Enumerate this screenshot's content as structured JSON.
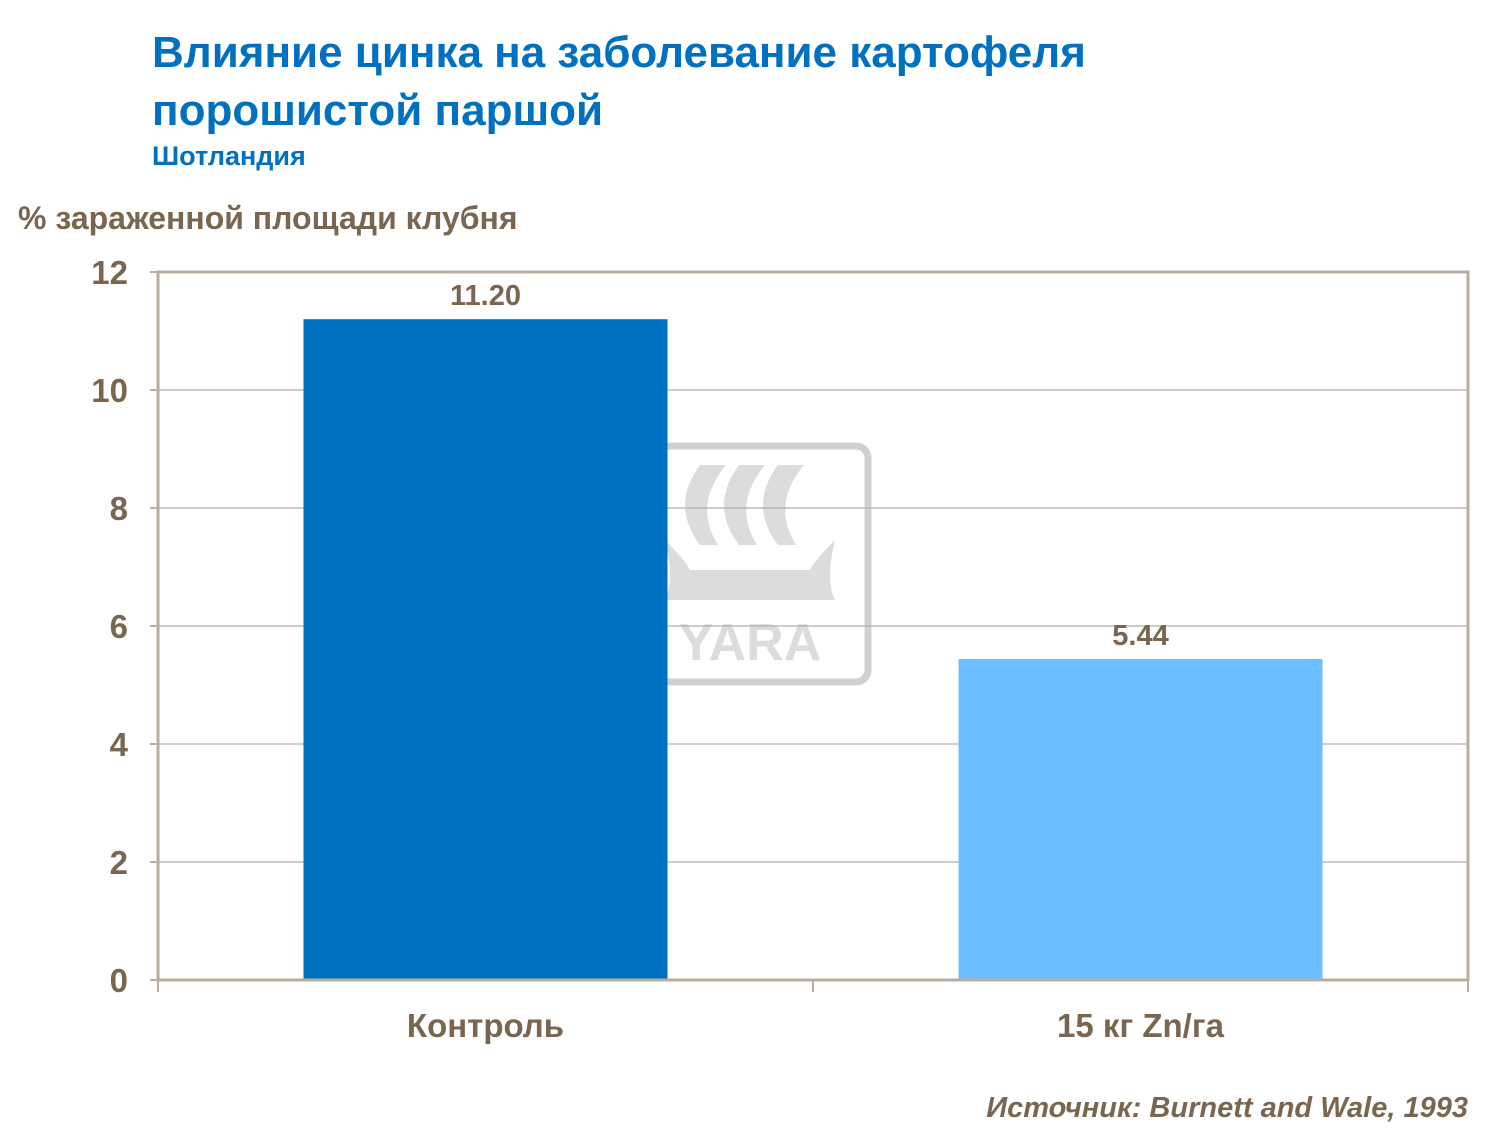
{
  "title": "Влияние цинка на заболевание картофеля порошистой паршой",
  "subtitle": "Шотландия",
  "source": "Источник: Burnett and Wale, 1993",
  "watermark": "YARA",
  "colors": {
    "title": "#0070c0",
    "text": "#7a6650",
    "bar1": "#0070c0",
    "bar2": "#6bbeff",
    "grid": "#b9ada0"
  },
  "chart_data": {
    "type": "bar",
    "title": "Влияние цинка на заболевание картофеля порошистой паршой",
    "ylabel": "% зараженной площади клубня",
    "xlabel": "",
    "categories": [
      "Контроль",
      "15 кг Zn/га"
    ],
    "values": [
      11.2,
      5.44
    ],
    "data_labels": [
      "11.20",
      "5.44"
    ],
    "ylim": [
      0,
      12
    ],
    "yticks": [
      "0",
      "2",
      "4",
      "6",
      "8",
      "10",
      "12"
    ],
    "grid": true
  }
}
